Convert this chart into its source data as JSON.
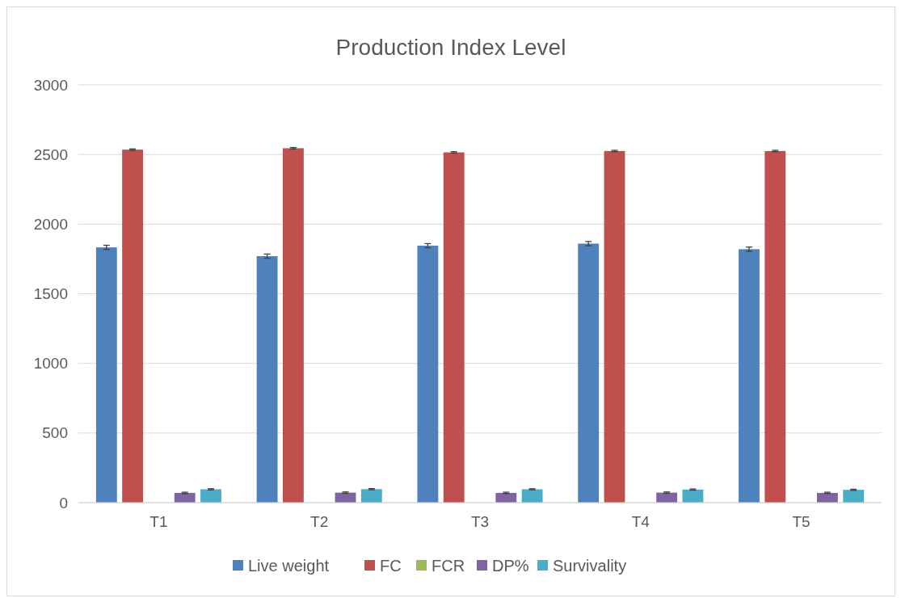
{
  "chart_data": {
    "type": "bar",
    "title": "Production Index Level",
    "categories": [
      "T1",
      "T2",
      "T3",
      "T4",
      "T5"
    ],
    "series": [
      {
        "name": "Live weight",
        "color": "#4f81bd",
        "values": [
          1833,
          1770,
          1845,
          1860,
          1820
        ],
        "errors": [
          15,
          15,
          15,
          15,
          15
        ]
      },
      {
        "name": "FC",
        "color": "#c0504d",
        "values": [
          2535,
          2545,
          2515,
          2525,
          2525
        ],
        "errors": [
          5,
          5,
          5,
          5,
          5
        ]
      },
      {
        "name": "FCR",
        "color": "#9bbb59",
        "values": [
          null,
          null,
          null,
          null,
          null
        ]
      },
      {
        "name": "DP%",
        "color": "#8064a2",
        "values": [
          70,
          72,
          70,
          72,
          70
        ],
        "errors": [
          5,
          5,
          5,
          5,
          5
        ]
      },
      {
        "name": "Survivality",
        "color": "#4bacc6",
        "values": [
          96,
          97,
          96,
          94,
          92
        ],
        "errors": [
          4,
          4,
          4,
          4,
          4
        ]
      }
    ],
    "ylim": [
      0,
      3000
    ],
    "yticks": [
      0,
      500,
      1000,
      1500,
      2000,
      2500,
      3000
    ],
    "grid": "y",
    "legend": "bottom"
  }
}
